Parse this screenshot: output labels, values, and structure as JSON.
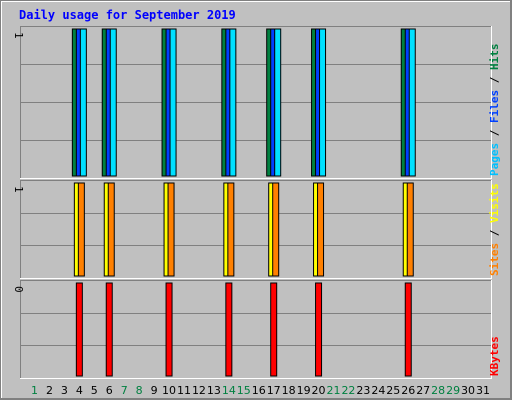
{
  "chart_data": {
    "type": "bar",
    "title": "Daily usage for September 2019",
    "days": [
      "1",
      "2",
      "3",
      "4",
      "5",
      "6",
      "7",
      "8",
      "9",
      "10",
      "11",
      "12",
      "13",
      "14",
      "15",
      "16",
      "17",
      "18",
      "19",
      "20",
      "21",
      "22",
      "23",
      "24",
      "25",
      "26",
      "27",
      "28",
      "29",
      "30",
      "31"
    ],
    "weekend_days": [
      "1",
      "7",
      "8",
      "14",
      "15",
      "21",
      "22",
      "28",
      "29"
    ],
    "panels": [
      {
        "id": "hits-files-pages",
        "axis_max_label": "1",
        "ymax": 1,
        "right_label_parts": [
          {
            "text": "Pages",
            "color": "#00c0ff"
          },
          {
            "text": " / ",
            "color": "#000000"
          },
          {
            "text": "Files",
            "color": "#0040ff"
          },
          {
            "text": " / ",
            "color": "#000000"
          },
          {
            "text": "Hits",
            "color": "#008040"
          }
        ],
        "series": [
          {
            "name": "Hits",
            "color": "#008040",
            "values": [
              0,
              0,
              0,
              1,
              0,
              1,
              0,
              0,
              0,
              1,
              0,
              0,
              0,
              1,
              0,
              0,
              1,
              0,
              0,
              1,
              0,
              0,
              0,
              0,
              0,
              1,
              0,
              0,
              0,
              0,
              0
            ]
          },
          {
            "name": "Files",
            "color": "#0040ff",
            "values": [
              0,
              0,
              0,
              1,
              0,
              1,
              0,
              0,
              0,
              1,
              0,
              0,
              0,
              1,
              0,
              0,
              1,
              0,
              0,
              1,
              0,
              0,
              0,
              0,
              0,
              1,
              0,
              0,
              0,
              0,
              0
            ]
          },
          {
            "name": "Pages",
            "color": "#00e0ff",
            "values": [
              0,
              0,
              0,
              1,
              0,
              1,
              0,
              0,
              0,
              1,
              0,
              0,
              0,
              1,
              0,
              0,
              1,
              0,
              0,
              1,
              0,
              0,
              0,
              0,
              0,
              1,
              0,
              0,
              0,
              0,
              0
            ]
          }
        ]
      },
      {
        "id": "visits-sites",
        "axis_max_label": "1",
        "ymax": 1,
        "right_label_parts": [
          {
            "text": "Sites",
            "color": "#ff8000"
          },
          {
            "text": " / ",
            "color": "#000000"
          },
          {
            "text": "Visits",
            "color": "#ffff00"
          }
        ],
        "series": [
          {
            "name": "Visits",
            "color": "#ffff00",
            "values": [
              0,
              0,
              0,
              1,
              0,
              1,
              0,
              0,
              0,
              1,
              0,
              0,
              0,
              1,
              0,
              0,
              1,
              0,
              0,
              1,
              0,
              0,
              0,
              0,
              0,
              1,
              0,
              0,
              0,
              0,
              0
            ]
          },
          {
            "name": "Sites",
            "color": "#ff8000",
            "values": [
              0,
              0,
              0,
              1,
              0,
              1,
              0,
              0,
              0,
              1,
              0,
              0,
              0,
              1,
              0,
              0,
              1,
              0,
              0,
              1,
              0,
              0,
              0,
              0,
              0,
              1,
              0,
              0,
              0,
              0,
              0
            ]
          }
        ]
      },
      {
        "id": "kbytes",
        "axis_max_label": "0",
        "ymax": 1,
        "right_label_parts": [
          {
            "text": "KBytes",
            "color": "#ff0000"
          }
        ],
        "series": [
          {
            "name": "KBytes",
            "color": "#ff0000",
            "values": [
              0,
              0,
              0,
              1,
              0,
              1,
              0,
              0,
              0,
              1,
              0,
              0,
              0,
              1,
              0,
              0,
              1,
              0,
              0,
              1,
              0,
              0,
              0,
              0,
              0,
              1,
              0,
              0,
              0,
              0,
              0
            ]
          }
        ]
      }
    ],
    "colors": {
      "title": "#0000ff",
      "weekday_label": "#000000",
      "weekend_label": "#008040",
      "background": "#c0c0c0"
    }
  }
}
